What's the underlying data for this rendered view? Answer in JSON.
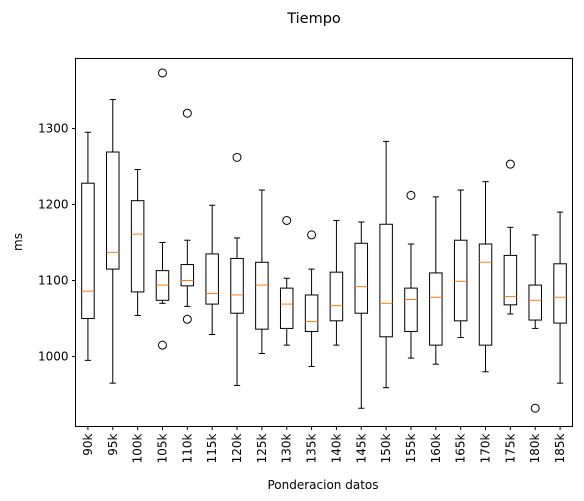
{
  "chart_data": {
    "type": "boxplot",
    "title": "Tiempo",
    "xlabel": "Ponderacion datos",
    "ylabel": "ms",
    "categories": [
      "90k",
      "95k",
      "100k",
      "105k",
      "110k",
      "115k",
      "120k",
      "125k",
      "130k",
      "135k",
      "140k",
      "145k",
      "150k",
      "155k",
      "160k",
      "165k",
      "170k",
      "175k",
      "180k",
      "185k"
    ],
    "yticks": [
      1000,
      1100,
      1200,
      1300
    ],
    "ylim": [
      908,
      1392
    ],
    "grid": false,
    "colors": {
      "box": "#000000",
      "median": "#ff7f0e",
      "flier": "#000000"
    },
    "boxes": [
      {
        "whislo": 995,
        "q1": 1050,
        "med": 1086,
        "q3": 1228,
        "whishi": 1295,
        "fliers": []
      },
      {
        "whislo": 965,
        "q1": 1115,
        "med": 1137,
        "q3": 1269,
        "whishi": 1338,
        "fliers": []
      },
      {
        "whislo": 1054,
        "q1": 1085,
        "med": 1161,
        "q3": 1205,
        "whishi": 1246,
        "fliers": []
      },
      {
        "whislo": 1070,
        "q1": 1074,
        "med": 1094,
        "q3": 1113,
        "whishi": 1150,
        "fliers": [
          1373,
          1015
        ]
      },
      {
        "whislo": 1066,
        "q1": 1093,
        "med": 1100,
        "q3": 1121,
        "whishi": 1153,
        "fliers": [
          1320,
          1049
        ]
      },
      {
        "whislo": 1029,
        "q1": 1069,
        "med": 1083,
        "q3": 1135,
        "whishi": 1199,
        "fliers": []
      },
      {
        "whislo": 962,
        "q1": 1057,
        "med": 1081,
        "q3": 1129,
        "whishi": 1156,
        "fliers": [
          1262
        ]
      },
      {
        "whislo": 1004,
        "q1": 1036,
        "med": 1094,
        "q3": 1124,
        "whishi": 1219,
        "fliers": []
      },
      {
        "whislo": 1015,
        "q1": 1037,
        "med": 1069,
        "q3": 1090,
        "whishi": 1103,
        "fliers": [
          1179
        ]
      },
      {
        "whislo": 987,
        "q1": 1033,
        "med": 1046,
        "q3": 1081,
        "whishi": 1115,
        "fliers": [
          1160
        ]
      },
      {
        "whislo": 1015,
        "q1": 1047,
        "med": 1067,
        "q3": 1111,
        "whishi": 1179,
        "fliers": []
      },
      {
        "whislo": 932,
        "q1": 1057,
        "med": 1092,
        "q3": 1149,
        "whishi": 1177,
        "fliers": []
      },
      {
        "whislo": 959,
        "q1": 1026,
        "med": 1070,
        "q3": 1174,
        "whishi": 1283,
        "fliers": []
      },
      {
        "whislo": 998,
        "q1": 1033,
        "med": 1075,
        "q3": 1090,
        "whishi": 1148,
        "fliers": [
          1212
        ]
      },
      {
        "whislo": 990,
        "q1": 1015,
        "med": 1078,
        "q3": 1110,
        "whishi": 1210,
        "fliers": []
      },
      {
        "whislo": 1025,
        "q1": 1047,
        "med": 1099,
        "q3": 1153,
        "whishi": 1219,
        "fliers": []
      },
      {
        "whislo": 980,
        "q1": 1015,
        "med": 1124,
        "q3": 1148,
        "whishi": 1230,
        "fliers": []
      },
      {
        "whislo": 1056,
        "q1": 1068,
        "med": 1079,
        "q3": 1133,
        "whishi": 1170,
        "fliers": [
          1253
        ]
      },
      {
        "whislo": 1037,
        "q1": 1048,
        "med": 1074,
        "q3": 1094,
        "whishi": 1160,
        "fliers": [
          932
        ]
      },
      {
        "whislo": 965,
        "q1": 1044,
        "med": 1078,
        "q3": 1122,
        "whishi": 1190,
        "fliers": []
      }
    ]
  }
}
